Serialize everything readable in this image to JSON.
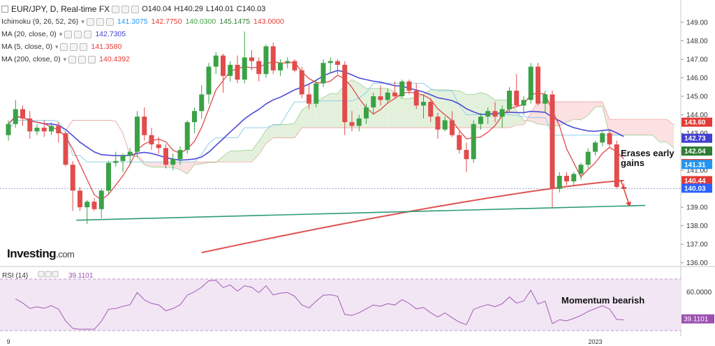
{
  "header": {
    "symbol": "EUR/JPY, D, Real-time FX",
    "ohlc": [
      {
        "k": "O",
        "v": "140.04"
      },
      {
        "k": "H",
        "v": "140.29"
      },
      {
        "k": "L",
        "v": "140.01"
      },
      {
        "k": "C",
        "v": "140.03"
      }
    ],
    "indicators": [
      {
        "label": "Ichimoku (9, 26, 52, 26)",
        "values": [
          {
            "v": "141.3075",
            "color": "#2196f3"
          },
          {
            "v": "142.7750",
            "color": "#e53935"
          },
          {
            "v": "140.0300",
            "color": "#43a047"
          },
          {
            "v": "145.1475",
            "color": "#2e7d32"
          },
          {
            "v": "143.0000",
            "color": "#e53935"
          }
        ]
      },
      {
        "label": "MA (20, close, 0)",
        "values": [
          {
            "v": "142.7305",
            "color": "#3f3fd0"
          }
        ]
      },
      {
        "label": "MA (5, close, 0)",
        "values": [
          {
            "v": "141.3580",
            "color": "#e53935"
          }
        ]
      },
      {
        "label": "MA (200, close, 0)",
        "values": [
          {
            "v": "140.4392",
            "color": "#e53935"
          }
        ]
      }
    ]
  },
  "logo": {
    "brand": "Investing",
    "suffix": ".com"
  },
  "chart_data": [
    {
      "type": "candlestick",
      "y_ticks": [
        "149.00",
        "148.00",
        "147.00",
        "146.00",
        "145.00",
        "144.00",
        "143.00",
        "142.00",
        "141.00",
        "140.00",
        "139.00",
        "138.00",
        "137.00",
        "136.00"
      ],
      "ylim": [
        135.8,
        149.6
      ],
      "x_labels": [
        {
          "label": "9",
          "index": 0
        },
        {
          "label": "2023",
          "index": 82
        }
      ],
      "price_tags": [
        {
          "label": "143.60",
          "value": 143.6,
          "color": "#e53935"
        },
        {
          "label": "142.73",
          "value": 142.73,
          "color": "#3f3fd0"
        },
        {
          "label": "142.04",
          "value": 142.04,
          "color": "#2e7d32"
        },
        {
          "label": "141.36",
          "value": 141.36,
          "color": "#e53935"
        },
        {
          "label": "141.31",
          "value": 141.31,
          "color": "#2196f3"
        },
        {
          "label": "140.44",
          "value": 140.44,
          "color": "#e53935"
        },
        {
          "label": "140.03",
          "value": 140.03,
          "color": "#2962ff"
        }
      ],
      "candles": [
        [
          142.9,
          143.7,
          142.6,
          143.5
        ],
        [
          143.5,
          144.8,
          143.3,
          144.3
        ],
        [
          144.3,
          144.5,
          143.4,
          143.8
        ],
        [
          143.8,
          144.2,
          142.7,
          143.1
        ],
        [
          143.1,
          143.5,
          142.9,
          143.3
        ],
        [
          143.3,
          143.7,
          142.8,
          143.1
        ],
        [
          143.1,
          143.6,
          142.9,
          143.4
        ],
        [
          143.4,
          143.6,
          142.5,
          143.0
        ],
        [
          143.0,
          143.1,
          141.2,
          141.3
        ],
        [
          141.3,
          141.5,
          138.8,
          139.9
        ],
        [
          139.9,
          140.1,
          138.8,
          139.0
        ],
        [
          139.0,
          139.4,
          138.1,
          139.3
        ],
        [
          139.3,
          139.5,
          138.8,
          138.9
        ],
        [
          138.9,
          140.0,
          138.4,
          139.9
        ],
        [
          139.9,
          141.5,
          139.7,
          141.4
        ],
        [
          141.4,
          142.0,
          141.2,
          141.5
        ],
        [
          141.5,
          141.9,
          140.9,
          141.8
        ],
        [
          141.8,
          142.2,
          141.3,
          142.0
        ],
        [
          142.0,
          144.2,
          141.7,
          143.9
        ],
        [
          143.9,
          144.4,
          142.6,
          142.9
        ],
        [
          142.9,
          143.3,
          142.1,
          142.4
        ],
        [
          142.4,
          142.8,
          141.9,
          142.2
        ],
        [
          142.2,
          142.4,
          141.1,
          141.3
        ],
        [
          141.3,
          141.9,
          141.0,
          141.6
        ],
        [
          141.6,
          142.3,
          141.3,
          142.1
        ],
        [
          142.1,
          143.7,
          141.9,
          143.6
        ],
        [
          143.6,
          144.4,
          143.0,
          144.2
        ],
        [
          144.2,
          145.6,
          143.8,
          145.1
        ],
        [
          145.1,
          146.8,
          144.6,
          146.6
        ],
        [
          146.6,
          147.4,
          146.2,
          147.2
        ],
        [
          147.2,
          147.3,
          145.2,
          146.1
        ],
        [
          146.1,
          146.9,
          145.8,
          146.7
        ],
        [
          146.7,
          147.2,
          145.7,
          145.9
        ],
        [
          145.9,
          148.5,
          145.7,
          147.1
        ],
        [
          147.1,
          147.5,
          146.4,
          146.9
        ],
        [
          146.9,
          147.1,
          145.8,
          146.2
        ],
        [
          146.2,
          147.8,
          146.0,
          147.7
        ],
        [
          147.7,
          147.9,
          146.2,
          146.4
        ],
        [
          146.4,
          147.0,
          146.1,
          146.8
        ],
        [
          146.8,
          147.1,
          146.5,
          146.9
        ],
        [
          146.9,
          147.0,
          146.3,
          146.4
        ],
        [
          146.4,
          146.6,
          144.9,
          145.1
        ],
        [
          145.1,
          145.7,
          144.3,
          144.6
        ],
        [
          144.6,
          145.9,
          144.4,
          145.7
        ],
        [
          145.7,
          147.0,
          145.5,
          146.8
        ],
        [
          146.8,
          147.1,
          146.3,
          146.9
        ],
        [
          146.9,
          147.0,
          146.2,
          146.7
        ],
        [
          146.7,
          146.9,
          142.9,
          143.6
        ],
        [
          143.6,
          144.2,
          143.1,
          143.4
        ],
        [
          143.4,
          144.0,
          143.1,
          143.8
        ],
        [
          143.8,
          144.6,
          143.5,
          144.4
        ],
        [
          144.4,
          145.2,
          144.0,
          145.0
        ],
        [
          145.0,
          145.6,
          144.5,
          144.8
        ],
        [
          144.8,
          145.4,
          144.6,
          145.2
        ],
        [
          145.2,
          145.8,
          144.9,
          145.0
        ],
        [
          145.0,
          145.9,
          144.9,
          145.8
        ],
        [
          145.8,
          145.9,
          145.1,
          145.3
        ],
        [
          145.3,
          145.7,
          144.3,
          144.5
        ],
        [
          144.5,
          145.1,
          143.8,
          144.7
        ],
        [
          144.7,
          144.9,
          143.6,
          143.9
        ],
        [
          143.9,
          144.1,
          142.7,
          143.2
        ],
        [
          143.2,
          143.9,
          143.1,
          143.7
        ],
        [
          143.7,
          144.2,
          142.8,
          142.9
        ],
        [
          142.9,
          143.1,
          141.9,
          142.1
        ],
        [
          142.1,
          142.5,
          140.9,
          141.6
        ],
        [
          141.6,
          143.7,
          141.4,
          143.5
        ],
        [
          143.5,
          144.1,
          143.2,
          143.9
        ],
        [
          143.9,
          144.4,
          143.5,
          144.2
        ],
        [
          144.2,
          144.7,
          143.6,
          143.9
        ],
        [
          143.9,
          144.5,
          143.3,
          144.3
        ],
        [
          144.3,
          145.5,
          144.1,
          145.3
        ],
        [
          145.3,
          146.2,
          144.4,
          144.5
        ],
        [
          144.5,
          145.0,
          144.0,
          144.8
        ],
        [
          144.8,
          146.8,
          144.6,
          146.6
        ],
        [
          146.6,
          146.8,
          144.5,
          144.6
        ],
        [
          144.6,
          145.3,
          144.1,
          145.1
        ],
        [
          145.1,
          145.3,
          139.0,
          140.0
        ],
        [
          140.0,
          140.9,
          139.8,
          140.7
        ],
        [
          140.7,
          140.9,
          140.2,
          140.4
        ],
        [
          140.4,
          140.9,
          140.2,
          140.8
        ],
        [
          140.8,
          141.4,
          140.5,
          141.3
        ],
        [
          141.3,
          142.2,
          141.1,
          142.0
        ],
        [
          142.0,
          142.6,
          141.8,
          142.5
        ],
        [
          142.5,
          143.1,
          142.3,
          143.0
        ],
        [
          143.0,
          143.2,
          142.2,
          142.4
        ],
        [
          142.4,
          142.6,
          140.0,
          140.1
        ],
        [
          140.1,
          140.3,
          140.0,
          140.0
        ]
      ],
      "annotations": [
        {
          "text": "Erases early gains"
        }
      ]
    },
    {
      "type": "line",
      "name": "RSI (14)",
      "value": "39.1101",
      "y_ticks": [
        "60.0000"
      ],
      "annotations": [
        {
          "text": "Momentum bearish"
        }
      ]
    }
  ]
}
